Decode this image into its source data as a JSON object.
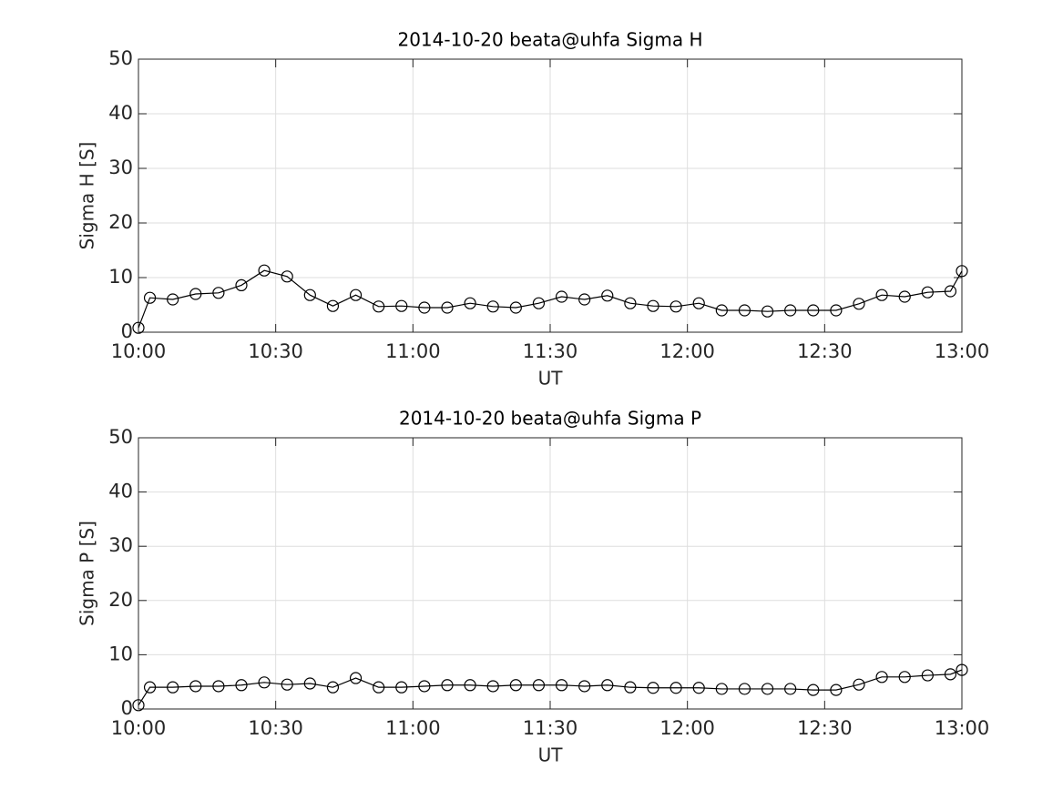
{
  "chart_data": [
    {
      "type": "line",
      "title": "2014-10-20  beata@uhfa Sigma H",
      "xlabel": "UT",
      "ylabel": "Sigma H [S]",
      "color": "#000000",
      "grid": true,
      "x": [
        "10:00:00",
        "10:02:30",
        "10:07:30",
        "10:12:30",
        "10:17:30",
        "10:22:30",
        "10:27:30",
        "10:32:30",
        "10:37:30",
        "10:42:30",
        "10:47:30",
        "10:52:30",
        "10:57:30",
        "11:02:30",
        "11:07:30",
        "11:12:30",
        "11:17:30",
        "11:22:30",
        "11:27:30",
        "11:32:30",
        "11:37:30",
        "11:42:30",
        "11:47:30",
        "11:52:30",
        "11:57:30",
        "12:02:30",
        "12:07:30",
        "12:12:30",
        "12:17:30",
        "12:22:30",
        "12:27:30",
        "12:32:30",
        "12:37:30",
        "12:42:30",
        "12:47:30",
        "12:52:30",
        "12:57:30",
        "13:00:00"
      ],
      "values": [
        0.8,
        6.3,
        6.0,
        7.0,
        7.2,
        8.6,
        11.3,
        10.2,
        6.8,
        4.8,
        6.8,
        4.7,
        4.8,
        4.5,
        4.5,
        5.3,
        4.7,
        4.5,
        5.3,
        6.5,
        6.0,
        6.7,
        5.3,
        4.8,
        4.7,
        5.3,
        4.0,
        4.0,
        3.8,
        4.0,
        4.0,
        4.0,
        5.2,
        6.8,
        6.5,
        7.3,
        7.5,
        11.2
      ],
      "xlim": [
        "10:00",
        "13:00"
      ],
      "xticks": [
        "10:00",
        "10:30",
        "11:00",
        "11:30",
        "12:00",
        "12:30",
        "13:00"
      ],
      "ylim": [
        0,
        50
      ],
      "yticks": [
        0,
        10,
        20,
        30,
        40,
        50
      ]
    },
    {
      "type": "line",
      "title": "2014-10-20  beata@uhfa Sigma P",
      "xlabel": "UT",
      "ylabel": "Sigma P [S]",
      "color": "#000000",
      "grid": true,
      "x": [
        "10:00:00",
        "10:02:30",
        "10:07:30",
        "10:12:30",
        "10:17:30",
        "10:22:30",
        "10:27:30",
        "10:32:30",
        "10:37:30",
        "10:42:30",
        "10:47:30",
        "10:52:30",
        "10:57:30",
        "11:02:30",
        "11:07:30",
        "11:12:30",
        "11:17:30",
        "11:22:30",
        "11:27:30",
        "11:32:30",
        "11:37:30",
        "11:42:30",
        "11:47:30",
        "11:52:30",
        "11:57:30",
        "12:02:30",
        "12:07:30",
        "12:12:30",
        "12:17:30",
        "12:22:30",
        "12:27:30",
        "12:32:30",
        "12:37:30",
        "12:42:30",
        "12:47:30",
        "12:52:30",
        "12:57:30",
        "13:00:00"
      ],
      "values": [
        0.7,
        4.0,
        4.0,
        4.2,
        4.2,
        4.4,
        4.9,
        4.5,
        4.7,
        4.0,
        5.7,
        4.0,
        4.0,
        4.2,
        4.4,
        4.4,
        4.2,
        4.4,
        4.4,
        4.4,
        4.2,
        4.4,
        4.0,
        3.9,
        3.9,
        3.9,
        3.7,
        3.7,
        3.7,
        3.7,
        3.5,
        3.5,
        4.5,
        5.9,
        5.9,
        6.2,
        6.4,
        7.2
      ],
      "xlim": [
        "10:00",
        "13:00"
      ],
      "xticks": [
        "10:00",
        "10:30",
        "11:00",
        "11:30",
        "12:00",
        "12:30",
        "13:00"
      ],
      "ylim": [
        0,
        50
      ],
      "yticks": [
        0,
        10,
        20,
        30,
        40,
        50
      ]
    }
  ]
}
